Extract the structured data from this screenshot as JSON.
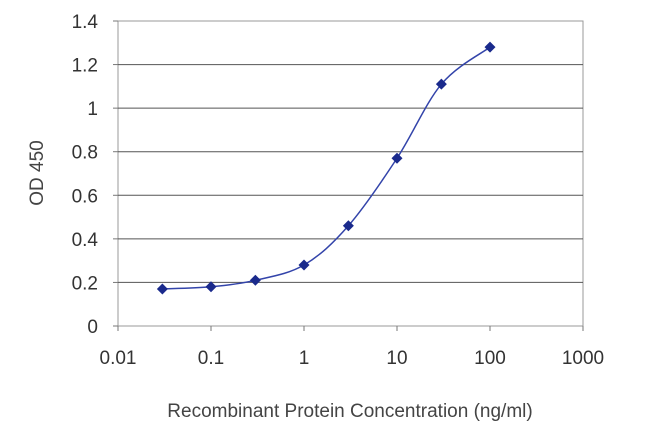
{
  "chart_data": {
    "type": "scatter",
    "title": "",
    "xlabel": "Recombinant Protein Concentration (ng/ml)",
    "ylabel": "OD 450",
    "x_scale": "log",
    "xlim": [
      0.01,
      1000
    ],
    "ylim": [
      0,
      1.4
    ],
    "x_ticks": [
      "0.01",
      "0.1",
      "1",
      "10",
      "100",
      "1000"
    ],
    "y_ticks": [
      "0",
      "0.2",
      "0.4",
      "0.6",
      "0.8",
      "1",
      "1.2",
      "1.4"
    ],
    "grid": "horizontal",
    "legend": "none",
    "series": [
      {
        "x": [
          0.03,
          0.1,
          0.3,
          1,
          3,
          10,
          30,
          100
        ],
        "y": [
          0.17,
          0.18,
          0.21,
          0.28,
          0.46,
          0.77,
          1.11,
          1.28
        ],
        "color": "#1a2a8c",
        "fit_line_color": "#3344aa"
      }
    ]
  }
}
